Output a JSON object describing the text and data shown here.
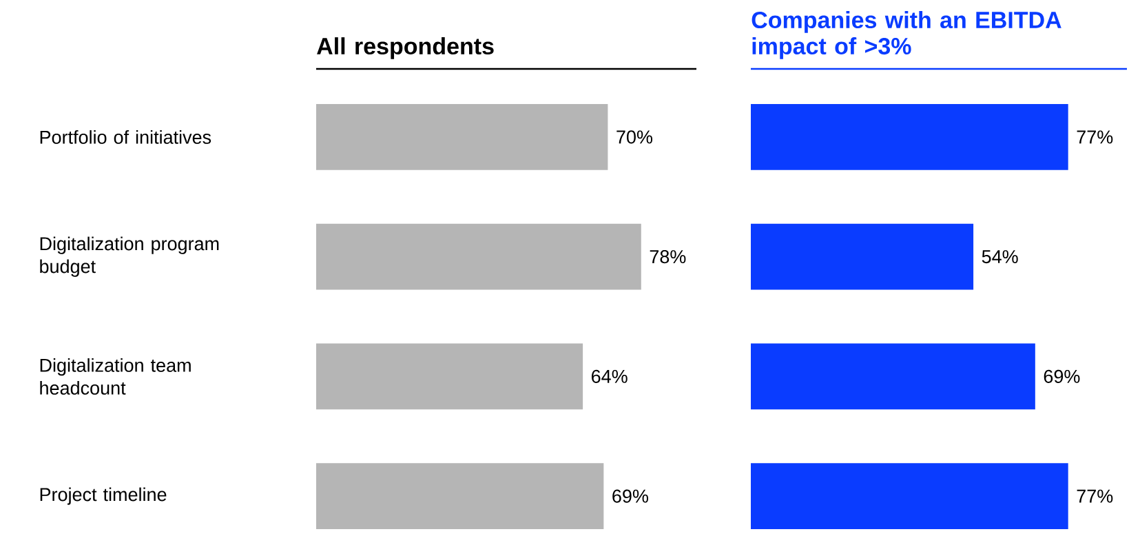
{
  "chart_data": [
    {
      "type": "bar",
      "orientation": "horizontal",
      "title": "All respondents",
      "categories": [
        "Portfolio of initiatives",
        "Digitalization program budget",
        "Digitalization team headcount",
        "Project timeline"
      ],
      "values": [
        70,
        78,
        64,
        69
      ],
      "value_labels": [
        "70%",
        "78%",
        "64%",
        "69%"
      ],
      "color": "#b5b5b5",
      "tick_labels": "y"
    },
    {
      "type": "bar",
      "orientation": "horizontal",
      "title": "Companies with an EBITDA impact of >3%",
      "categories": [
        null,
        null,
        null,
        null
      ],
      "values": [
        77,
        54,
        69,
        77
      ],
      "value_labels": [
        "77%",
        "54%",
        "69%",
        "77%"
      ],
      "color": "#0a3cff",
      "tick_labels": false
    }
  ]
}
